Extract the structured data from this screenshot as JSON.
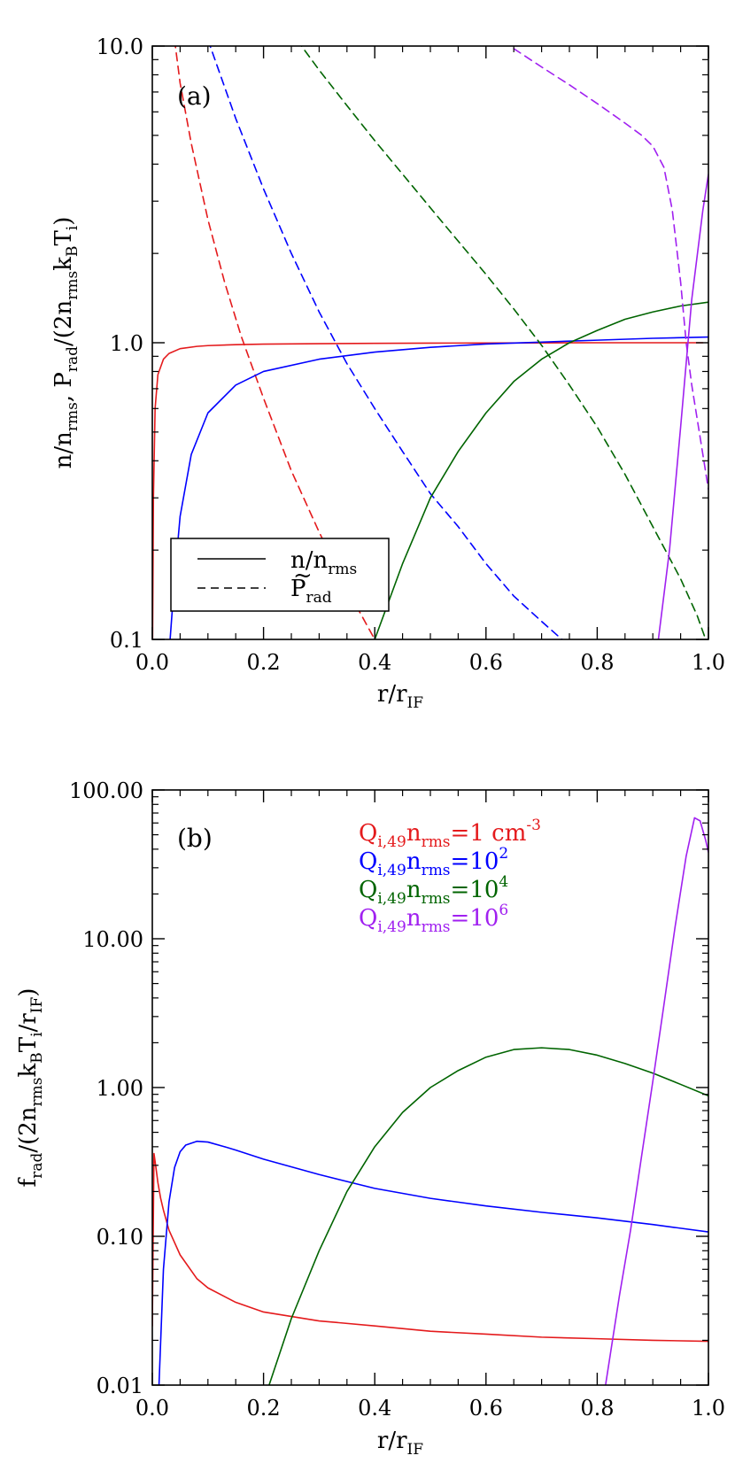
{
  "chart_data": [
    {
      "panel": "(a)",
      "type": "line",
      "xlabel": "r/r_IF",
      "ylabel": "n/n_rms, P_rad/(2n_rms k_B T_i)",
      "xlim": [
        0,
        1
      ],
      "ylim": [
        0.1,
        10
      ],
      "yscale": "log",
      "xticks": [
        "0.0",
        "0.2",
        "0.4",
        "0.6",
        "0.8",
        "1.0"
      ],
      "yticks": [
        "0.1",
        "1.0",
        "10.0"
      ],
      "legend": {
        "placement": "bottom-left",
        "entries": [
          {
            "label": "n/n_rms",
            "style": "solid"
          },
          {
            "label": "P̃_rad",
            "style": "dashed"
          }
        ]
      },
      "series": [
        {
          "color": "#e41a1c",
          "style": "solid",
          "x": [
            0.0005,
            0.002,
            0.005,
            0.01,
            0.02,
            0.03,
            0.05,
            0.08,
            0.1,
            0.15,
            0.2,
            0.3,
            0.4,
            0.5,
            0.6,
            0.7,
            0.8,
            0.9,
            0.99
          ],
          "y": [
            0.1,
            0.3,
            0.6,
            0.78,
            0.88,
            0.92,
            0.955,
            0.972,
            0.978,
            0.985,
            0.989,
            0.993,
            0.995,
            0.997,
            0.998,
            0.999,
            1.0,
            1.0,
            1.0
          ]
        },
        {
          "color": "#e41a1c",
          "style": "dashed",
          "x": [
            0.04,
            0.05,
            0.07,
            0.1,
            0.13,
            0.16,
            0.2,
            0.25,
            0.3,
            0.35,
            0.4
          ],
          "y": [
            10.5,
            7.5,
            4.7,
            2.6,
            1.6,
            1.05,
            0.65,
            0.37,
            0.23,
            0.148,
            0.1
          ]
        },
        {
          "color": "#0000ff",
          "style": "solid",
          "x": [
            0.032,
            0.04,
            0.05,
            0.07,
            0.1,
            0.15,
            0.2,
            0.3,
            0.4,
            0.5,
            0.6,
            0.7,
            0.8,
            0.9,
            1.0
          ],
          "y": [
            0.1,
            0.16,
            0.26,
            0.42,
            0.58,
            0.72,
            0.8,
            0.88,
            0.93,
            0.965,
            0.99,
            1.005,
            1.02,
            1.035,
            1.045
          ]
        },
        {
          "color": "#0000ff",
          "style": "dashed",
          "x": [
            0.1,
            0.15,
            0.2,
            0.25,
            0.3,
            0.35,
            0.4,
            0.45,
            0.5,
            0.55,
            0.6,
            0.65,
            0.7,
            0.75
          ],
          "y": [
            10.5,
            5.7,
            3.3,
            2.0,
            1.27,
            0.85,
            0.6,
            0.43,
            0.31,
            0.24,
            0.18,
            0.14,
            0.115,
            0.095
          ]
        },
        {
          "color": "#006400",
          "style": "solid",
          "x": [
            0.4,
            0.45,
            0.5,
            0.55,
            0.6,
            0.65,
            0.7,
            0.75,
            0.8,
            0.85,
            0.9,
            0.95,
            1.0
          ],
          "y": [
            0.1,
            0.18,
            0.3,
            0.43,
            0.58,
            0.74,
            0.88,
            1.0,
            1.1,
            1.2,
            1.27,
            1.33,
            1.37
          ]
        },
        {
          "color": "#006400",
          "style": "dashed",
          "x": [
            0.26,
            0.3,
            0.35,
            0.4,
            0.45,
            0.5,
            0.55,
            0.6,
            0.65,
            0.7,
            0.75,
            0.8,
            0.85,
            0.9,
            0.95,
            0.98,
            0.995
          ],
          "y": [
            10.5,
            8.3,
            6.3,
            4.8,
            3.7,
            2.85,
            2.2,
            1.7,
            1.3,
            0.98,
            0.72,
            0.52,
            0.36,
            0.24,
            0.16,
            0.12,
            0.1
          ]
        },
        {
          "color": "#a020f0",
          "style": "solid",
          "x": [
            0.91,
            0.93,
            0.95,
            0.97,
            0.99,
            1.0
          ],
          "y": [
            0.1,
            0.2,
            0.52,
            1.4,
            2.8,
            3.7
          ]
        },
        {
          "color": "#a020f0",
          "style": "dashed",
          "x": [
            0.65,
            0.7,
            0.75,
            0.8,
            0.85,
            0.88,
            0.9,
            0.92,
            0.935,
            0.95,
            0.96,
            0.97,
            0.98,
            0.99,
            1.0
          ],
          "y": [
            9.8,
            8.5,
            7.4,
            6.4,
            5.5,
            5.0,
            4.6,
            3.9,
            2.8,
            1.6,
            1.0,
            0.72,
            0.55,
            0.42,
            0.32
          ]
        }
      ]
    },
    {
      "panel": "(b)",
      "type": "line",
      "xlabel": "r/r_IF",
      "ylabel": "f_rad/(2n_rms k_B T_i/r_IF)",
      "xlim": [
        0,
        1
      ],
      "ylim": [
        0.01,
        100
      ],
      "yscale": "log",
      "xticks": [
        "0.0",
        "0.2",
        "0.4",
        "0.6",
        "0.8",
        "1.0"
      ],
      "yticks": [
        "0.01",
        "0.10",
        "1.00",
        "10.00",
        "100.00"
      ],
      "legend": {
        "placement": "top-center",
        "entries": [
          {
            "label": "Q_i,49 n_rms=1 cm^-3",
            "color": "#e41a1c"
          },
          {
            "label": "Q_i,49 n_rms=10^2",
            "color": "#0000ff"
          },
          {
            "label": "Q_i,49 n_rms=10^4",
            "color": "#006400"
          },
          {
            "label": "Q_i,49 n_rms=10^6",
            "color": "#a020f0"
          }
        ]
      },
      "series": [
        {
          "color": "#e41a1c",
          "x": [
            0.0,
            0.003,
            0.006,
            0.01,
            0.015,
            0.02,
            0.03,
            0.05,
            0.08,
            0.1,
            0.15,
            0.2,
            0.3,
            0.4,
            0.5,
            0.6,
            0.7,
            0.8,
            0.9,
            1.0
          ],
          "y": [
            0.025,
            0.36,
            0.3,
            0.23,
            0.18,
            0.15,
            0.11,
            0.075,
            0.052,
            0.045,
            0.036,
            0.031,
            0.027,
            0.025,
            0.023,
            0.022,
            0.021,
            0.0205,
            0.02,
            0.0197
          ]
        },
        {
          "color": "#0000ff",
          "x": [
            0.012,
            0.02,
            0.03,
            0.04,
            0.05,
            0.06,
            0.08,
            0.1,
            0.13,
            0.15,
            0.2,
            0.3,
            0.4,
            0.5,
            0.6,
            0.7,
            0.8,
            0.9,
            1.0
          ],
          "y": [
            0.01,
            0.06,
            0.17,
            0.29,
            0.37,
            0.41,
            0.435,
            0.43,
            0.4,
            0.38,
            0.33,
            0.26,
            0.21,
            0.18,
            0.16,
            0.145,
            0.133,
            0.12,
            0.107
          ]
        },
        {
          "color": "#006400",
          "x": [
            0.21,
            0.25,
            0.3,
            0.35,
            0.4,
            0.45,
            0.5,
            0.55,
            0.6,
            0.65,
            0.7,
            0.75,
            0.8,
            0.85,
            0.9,
            0.95,
            1.0
          ],
          "y": [
            0.01,
            0.028,
            0.08,
            0.2,
            0.4,
            0.68,
            1.0,
            1.3,
            1.6,
            1.8,
            1.85,
            1.8,
            1.65,
            1.45,
            1.25,
            1.05,
            0.88
          ]
        },
        {
          "color": "#a020f0",
          "x": [
            0.815,
            0.84,
            0.86,
            0.88,
            0.9,
            0.92,
            0.94,
            0.96,
            0.975,
            0.985,
            0.995,
            1.0
          ],
          "y": [
            0.01,
            0.04,
            0.11,
            0.35,
            1.1,
            3.6,
            12,
            36,
            65,
            62,
            46,
            38
          ]
        }
      ]
    }
  ]
}
